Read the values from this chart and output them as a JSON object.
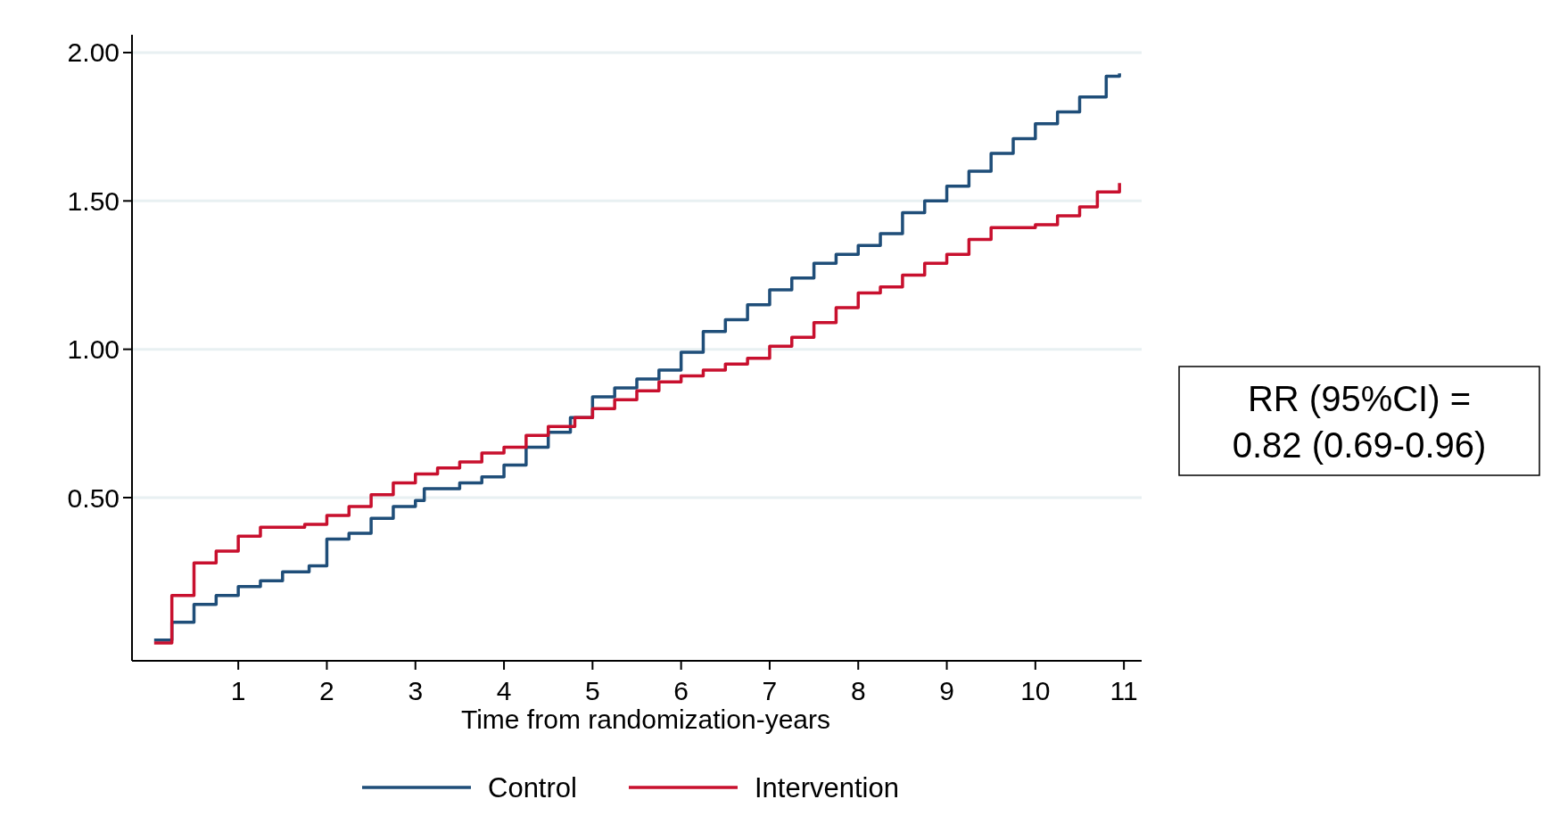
{
  "chart_data": {
    "type": "step",
    "xlabel": "Time from randomization-years",
    "xlim": [
      -0.2,
      11.2
    ],
    "xticks": [
      1,
      2,
      3,
      4,
      5,
      6,
      7,
      8,
      9,
      10,
      11
    ],
    "ylim": [
      -0.05,
      2.06
    ],
    "yticks": [
      {
        "value": 0.5,
        "label": "0.50"
      },
      {
        "value": 1,
        "label": "1.00"
      },
      {
        "value": 1.5,
        "label": "1.50"
      },
      {
        "value": 2,
        "label": "2.00"
      }
    ],
    "grid": "y",
    "legend": "bottom",
    "line_style": "solid",
    "marker": "none",
    "annotations": [
      "RR (95%CI) =\n0.82 (0.69-0.96)"
    ],
    "series": [
      {
        "name": "Control",
        "color": "#1f4e79",
        "x": [
          0.05,
          0.25,
          0.5,
          0.75,
          1.0,
          1.25,
          1.5,
          1.8,
          2.0,
          2.25,
          2.5,
          2.75,
          3.0,
          3.1,
          3.5,
          3.75,
          4.0,
          4.25,
          4.5,
          4.75,
          5.0,
          5.25,
          5.5,
          5.75,
          6.0,
          6.25,
          6.5,
          6.75,
          7.0,
          7.25,
          7.5,
          7.75,
          8.0,
          8.25,
          8.5,
          8.75,
          9.0,
          9.25,
          9.5,
          9.75,
          10.0,
          10.25,
          10.5,
          10.8,
          10.95
        ],
        "values": [
          0.02,
          0.08,
          0.14,
          0.17,
          0.2,
          0.22,
          0.25,
          0.27,
          0.36,
          0.38,
          0.43,
          0.47,
          0.49,
          0.53,
          0.55,
          0.57,
          0.61,
          0.67,
          0.72,
          0.77,
          0.84,
          0.87,
          0.9,
          0.93,
          0.99,
          1.06,
          1.1,
          1.15,
          1.2,
          1.24,
          1.29,
          1.32,
          1.35,
          1.39,
          1.46,
          1.5,
          1.55,
          1.6,
          1.66,
          1.71,
          1.76,
          1.8,
          1.85,
          1.92,
          1.93
        ]
      },
      {
        "name": "Intervention",
        "color": "#c8102e",
        "x": [
          0.05,
          0.25,
          0.5,
          0.75,
          1.0,
          1.25,
          1.75,
          2.0,
          2.25,
          2.5,
          2.75,
          3.0,
          3.25,
          3.5,
          3.75,
          4.0,
          4.25,
          4.5,
          4.8,
          5.0,
          5.25,
          5.5,
          5.75,
          6.0,
          6.25,
          6.5,
          6.75,
          7.0,
          7.25,
          7.5,
          7.75,
          8.0,
          8.25,
          8.5,
          8.75,
          9.0,
          9.25,
          9.5,
          10.0,
          10.25,
          10.5,
          10.7,
          10.95
        ],
        "values": [
          0.01,
          0.17,
          0.28,
          0.32,
          0.37,
          0.4,
          0.41,
          0.44,
          0.47,
          0.51,
          0.55,
          0.58,
          0.6,
          0.62,
          0.65,
          0.67,
          0.71,
          0.74,
          0.77,
          0.8,
          0.83,
          0.86,
          0.89,
          0.91,
          0.93,
          0.95,
          0.97,
          1.01,
          1.04,
          1.09,
          1.14,
          1.19,
          1.21,
          1.25,
          1.29,
          1.32,
          1.37,
          1.41,
          1.42,
          1.45,
          1.48,
          1.53,
          1.56
        ]
      }
    ]
  }
}
